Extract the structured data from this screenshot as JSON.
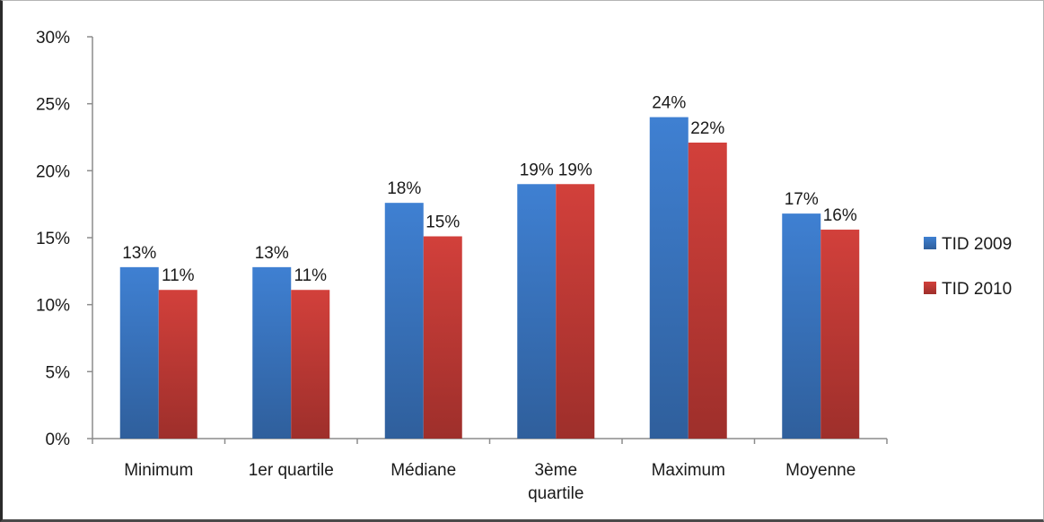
{
  "chart_data": {
    "type": "bar",
    "categories": [
      [
        "Minimum"
      ],
      [
        "1er quartile"
      ],
      [
        "Médiane"
      ],
      [
        "3ème",
        "quartile"
      ],
      [
        "Maximum"
      ],
      [
        "Moyenne"
      ]
    ],
    "series": [
      {
        "name": "TID 2009",
        "color": "#3a78c8",
        "values": [
          12.8,
          12.8,
          17.6,
          19.0,
          24.0,
          16.8
        ],
        "labels": [
          "13%",
          "13%",
          "18%",
          "19%",
          "24%",
          "17%"
        ]
      },
      {
        "name": "TID 2010",
        "color": "#c93a35",
        "values": [
          11.1,
          11.1,
          15.1,
          19.0,
          22.1,
          15.6
        ],
        "labels": [
          "11%",
          "11%",
          "15%",
          "19%",
          "22%",
          "16%"
        ]
      }
    ],
    "ylim": [
      0,
      30
    ],
    "yticks": [
      0,
      5,
      10,
      15,
      20,
      25,
      30
    ],
    "ytick_labels": [
      "0%",
      "5%",
      "10%",
      "15%",
      "20%",
      "25%",
      "30%"
    ],
    "grid": false,
    "legend": "right"
  }
}
